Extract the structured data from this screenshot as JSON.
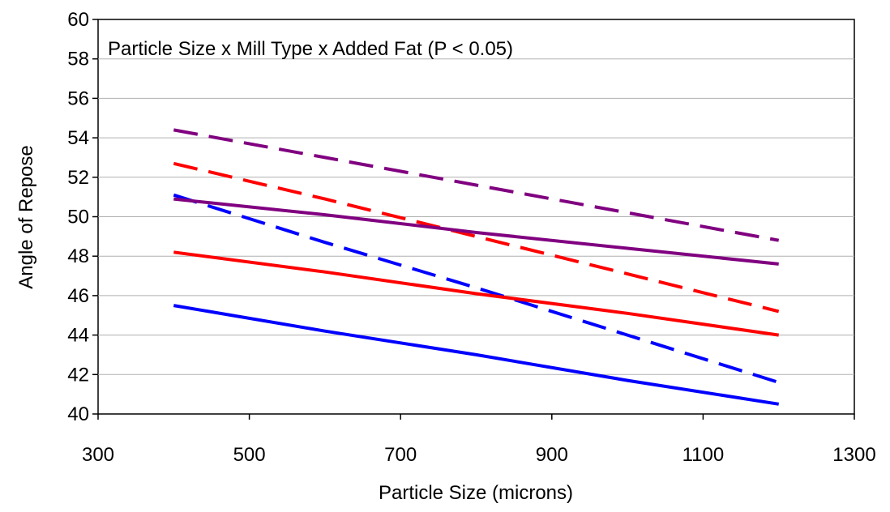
{
  "chart_data": {
    "type": "line",
    "annotation": "Particle Size x Mill Type x Added Fat (P < 0.05)",
    "xlabel": "Particle Size (microns)",
    "ylabel": "Angle of Repose",
    "xlim": [
      300,
      1300
    ],
    "ylim": [
      40,
      60
    ],
    "xticks": [
      300,
      500,
      700,
      900,
      1100,
      1300
    ],
    "yticks": [
      40,
      42,
      44,
      46,
      48,
      50,
      52,
      54,
      56,
      58,
      60
    ],
    "grid": "horizontal",
    "legend": "none",
    "series": [
      {
        "color": "#800080",
        "dash": "dashed",
        "points": [
          [
            400,
            54.4
          ],
          [
            600,
            53.0
          ],
          [
            800,
            51.6
          ],
          [
            1000,
            50.2
          ],
          [
            1200,
            48.8
          ]
        ]
      },
      {
        "color": "#ff0000",
        "dash": "dashed",
        "points": [
          [
            400,
            52.7
          ],
          [
            600,
            50.9
          ],
          [
            800,
            49.0
          ],
          [
            1000,
            47.1
          ],
          [
            1200,
            45.2
          ]
        ]
      },
      {
        "color": "#0000ff",
        "dash": "dashed",
        "points": [
          [
            400,
            51.1
          ],
          [
            600,
            48.7
          ],
          [
            800,
            46.4
          ],
          [
            1000,
            44.0
          ],
          [
            1200,
            41.6
          ]
        ]
      },
      {
        "color": "#800080",
        "dash": "solid",
        "points": [
          [
            400,
            50.9
          ],
          [
            600,
            50.1
          ],
          [
            800,
            49.2
          ],
          [
            1000,
            48.4
          ],
          [
            1200,
            47.6
          ]
        ]
      },
      {
        "color": "#ff0000",
        "dash": "solid",
        "points": [
          [
            400,
            48.2
          ],
          [
            600,
            47.2
          ],
          [
            800,
            46.1
          ],
          [
            1000,
            45.1
          ],
          [
            1200,
            44.0
          ]
        ]
      },
      {
        "color": "#0000ff",
        "dash": "solid",
        "points": [
          [
            400,
            45.5
          ],
          [
            600,
            44.2
          ],
          [
            800,
            43.0
          ],
          [
            1000,
            41.7
          ],
          [
            1200,
            40.5
          ]
        ]
      }
    ]
  }
}
